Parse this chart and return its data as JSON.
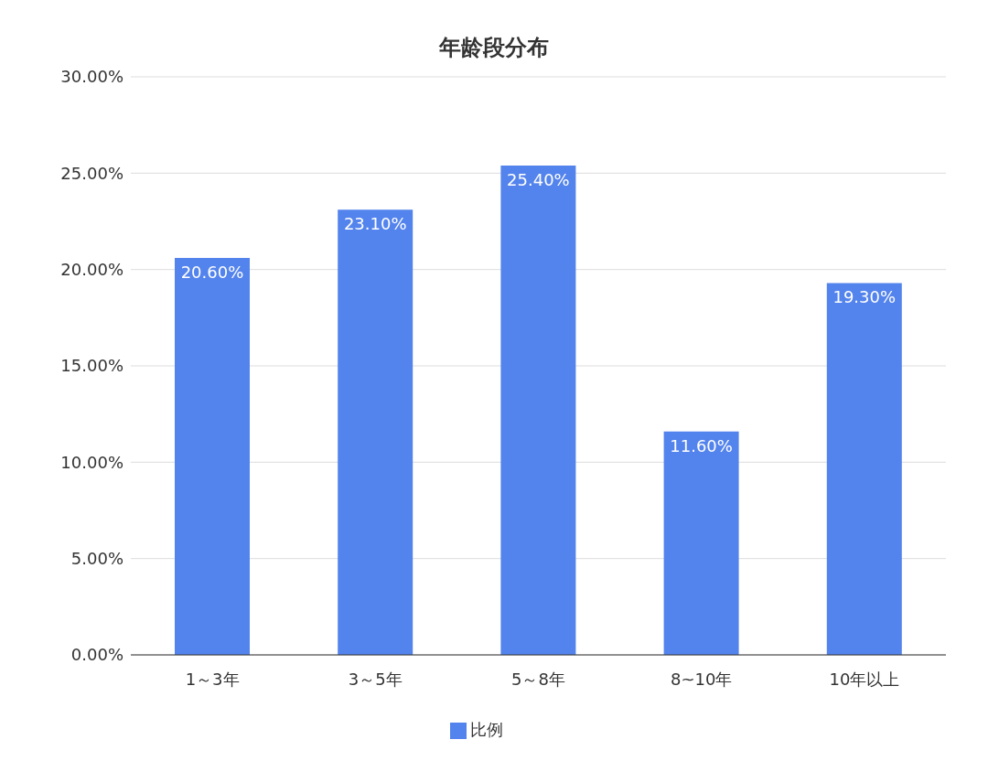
{
  "chart_data": {
    "type": "bar",
    "title": "年龄段分布",
    "categories": [
      "1～3年",
      "3～5年",
      "5～8年",
      "8~10年",
      "10年以上"
    ],
    "series": [
      {
        "name": "比例",
        "color": "#5383ec",
        "values": [
          20.6,
          23.1,
          25.4,
          11.6,
          19.3
        ],
        "value_labels": [
          "20.60%",
          "23.10%",
          "25.40%",
          "11.60%",
          "19.30%"
        ]
      }
    ],
    "ylim": [
      0,
      30
    ],
    "yticks": [
      {
        "value": 0,
        "label": "0.00%"
      },
      {
        "value": 5,
        "label": "5.00%"
      },
      {
        "value": 10,
        "label": "10.00%"
      },
      {
        "value": 15,
        "label": "15.00%"
      },
      {
        "value": 20,
        "label": "20.00%"
      },
      {
        "value": 25,
        "label": "25.00%"
      },
      {
        "value": 30,
        "label": "30.00%"
      }
    ],
    "grid": "y",
    "legend": "bottom"
  }
}
